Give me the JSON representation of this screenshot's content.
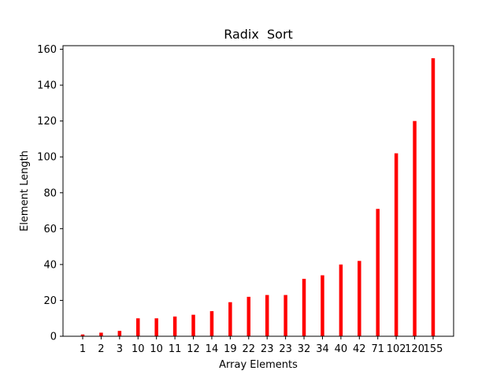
{
  "chart_data": {
    "type": "bar",
    "title": "Radix  Sort",
    "xlabel": "Array Elements",
    "ylabel": "Element Length",
    "categories": [
      "1",
      "2",
      "3",
      "10",
      "10",
      "11",
      "12",
      "14",
      "19",
      "22",
      "23",
      "23",
      "32",
      "34",
      "40",
      "42",
      "71",
      "102",
      "120",
      "155"
    ],
    "values": [
      1,
      2,
      3,
      10,
      10,
      11,
      12,
      14,
      19,
      22,
      23,
      23,
      32,
      34,
      40,
      42,
      71,
      102,
      120,
      155
    ],
    "ylim": [
      0,
      162
    ],
    "yticks": [
      0,
      20,
      40,
      60,
      80,
      100,
      120,
      140,
      160
    ],
    "bar_color": "#ff0000",
    "grid": false,
    "legend": "none"
  }
}
